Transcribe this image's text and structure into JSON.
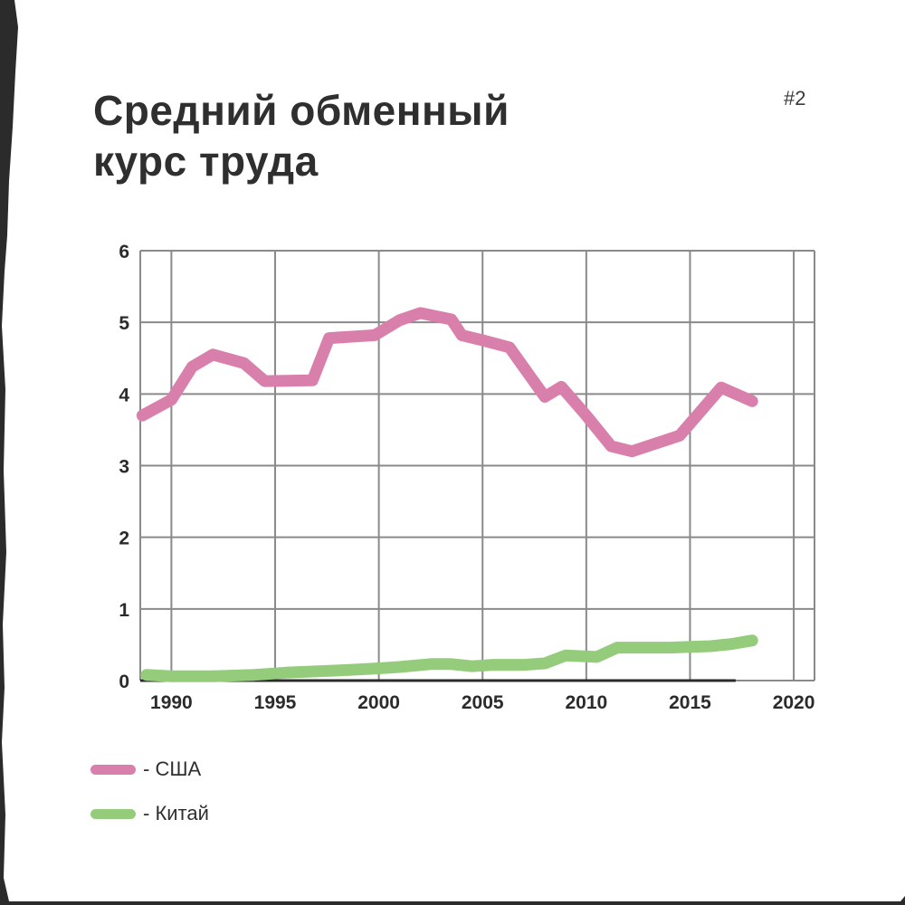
{
  "page": {
    "title_line1": "Средний обменный",
    "title_line2": "курс труда",
    "page_number": "#2"
  },
  "colors": {
    "usa": "#d97fab",
    "china": "#94cc7c",
    "grid": "#8a8a8a",
    "axis": "#2b2b2b",
    "paper": "#ffffff",
    "background": "#2b2b2b"
  },
  "chart_data": {
    "type": "line",
    "title": "Средний обменный курс труда",
    "xlabel": "",
    "ylabel": "",
    "xlim": [
      1988.5,
      2021
    ],
    "ylim": [
      0,
      6
    ],
    "x_ticks": [
      1990,
      1995,
      2000,
      2005,
      2010,
      2015,
      2020
    ],
    "y_ticks": [
      0,
      1,
      2,
      3,
      4,
      5,
      6
    ],
    "grid": true,
    "legend_position": "bottom-left",
    "series": [
      {
        "name": "- США",
        "color": "#d97fab",
        "points": [
          [
            1988.6,
            3.7
          ],
          [
            1990.0,
            3.92
          ],
          [
            1991.0,
            4.38
          ],
          [
            1992.0,
            4.55
          ],
          [
            1993.5,
            4.43
          ],
          [
            1994.5,
            4.18
          ],
          [
            1996.8,
            4.19
          ],
          [
            1997.6,
            4.78
          ],
          [
            1999.8,
            4.82
          ],
          [
            2001.0,
            5.03
          ],
          [
            2002.0,
            5.13
          ],
          [
            2003.5,
            5.04
          ],
          [
            2004.0,
            4.82
          ],
          [
            2005.0,
            4.75
          ],
          [
            2006.3,
            4.65
          ],
          [
            2008.0,
            3.96
          ],
          [
            2008.8,
            4.1
          ],
          [
            2010.0,
            3.7
          ],
          [
            2011.2,
            3.27
          ],
          [
            2012.2,
            3.2
          ],
          [
            2014.5,
            3.42
          ],
          [
            2016.5,
            4.09
          ],
          [
            2018.0,
            3.9
          ]
        ]
      },
      {
        "name": "- Китай",
        "color": "#94cc7c",
        "points": [
          [
            1988.8,
            0.08
          ],
          [
            1990.0,
            0.06
          ],
          [
            1992.0,
            0.06
          ],
          [
            1994.0,
            0.08
          ],
          [
            1995.5,
            0.11
          ],
          [
            1998.0,
            0.14
          ],
          [
            2000.0,
            0.17
          ],
          [
            2001.0,
            0.19
          ],
          [
            2002.5,
            0.23
          ],
          [
            2003.5,
            0.23
          ],
          [
            2004.5,
            0.2
          ],
          [
            2005.5,
            0.22
          ],
          [
            2007.0,
            0.22
          ],
          [
            2008.0,
            0.24
          ],
          [
            2009.0,
            0.35
          ],
          [
            2010.5,
            0.33
          ],
          [
            2011.5,
            0.46
          ],
          [
            2014.0,
            0.46
          ],
          [
            2016.0,
            0.48
          ],
          [
            2017.0,
            0.51
          ],
          [
            2018.0,
            0.56
          ]
        ]
      }
    ]
  }
}
